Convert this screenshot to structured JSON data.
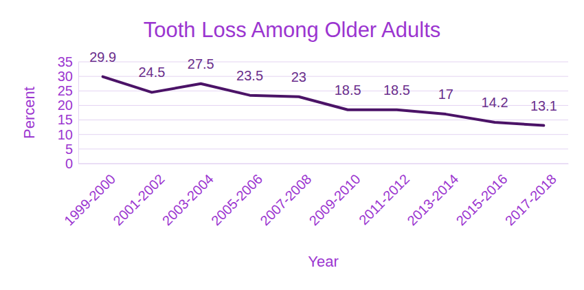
{
  "chart_data": {
    "type": "line",
    "title": "Tooth Loss Among Older Adults",
    "x_label": "Year",
    "y_label": "Percent",
    "categories": [
      "1999-2000",
      "2001-2002",
      "2003-2004",
      "2005-2006",
      "2007-2008",
      "2009-2010",
      "2011-2012",
      "2013-2014",
      "2015-2016",
      "2017-2018"
    ],
    "values": [
      29.9,
      24.5,
      27.5,
      23.5,
      23,
      18.5,
      18.5,
      17,
      14.2,
      13.1
    ],
    "color": "#4b1367",
    "ylim": [
      0,
      35
    ],
    "yticks": [
      0,
      5,
      10,
      15,
      20,
      25,
      30,
      35
    ],
    "grid": true,
    "data_labels": true
  }
}
